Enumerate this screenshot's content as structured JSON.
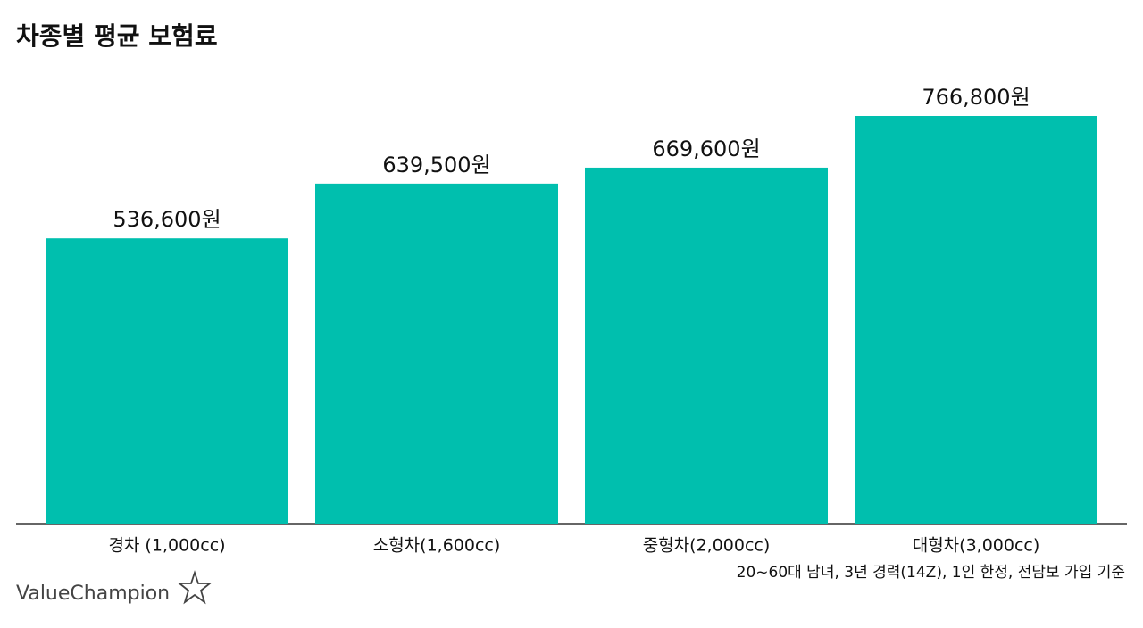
{
  "chart_data": {
    "type": "bar",
    "title": "차종별 평균 보험료",
    "categories": [
      "경차 (1,000cc)",
      "소형차(1,600cc)",
      "중형차(2,000cc)",
      "대형차(3,000cc)"
    ],
    "values": [
      536600,
      639500,
      669600,
      766800
    ],
    "value_labels": [
      "536,600원",
      "639,500원",
      "669,600원",
      "766,800원"
    ],
    "color": "#00bfae",
    "note": "20~60대 남녀, 3년 경력(14Z), 1인 한정, 전담보 가입 기준",
    "logo": "ValueChampion"
  }
}
